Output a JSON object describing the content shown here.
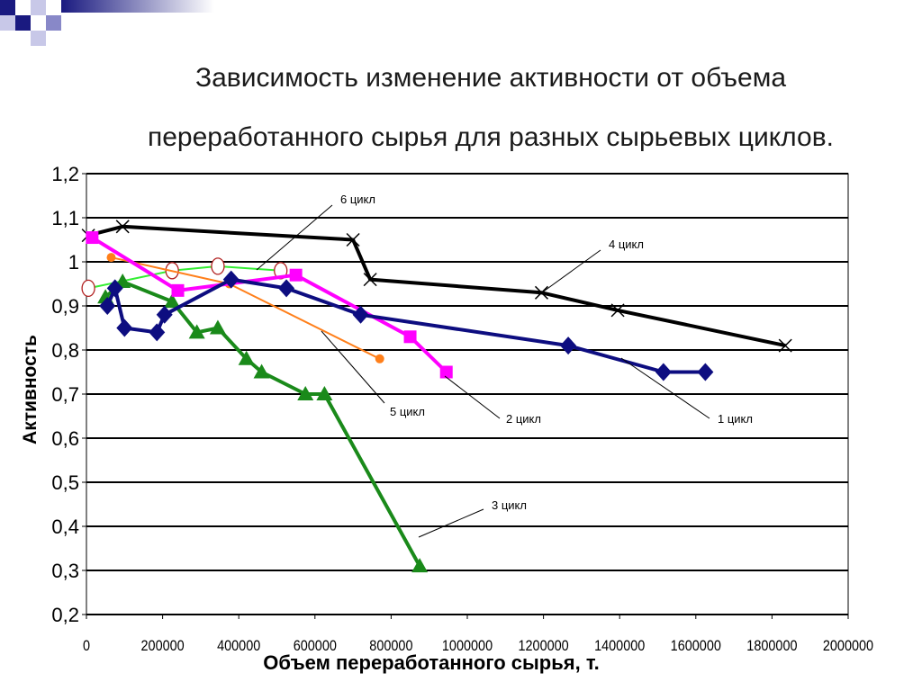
{
  "title_line1": "Зависимость изменение активности от объема",
  "title_line2": "переработанного сырья для разных сырьевых циклов.",
  "chart_data": {
    "type": "line",
    "title": "Зависимость изменение активности от объема переработанного сырья для разных сырьевых циклов.",
    "xlabel": "Объем переработанного сырья, т.",
    "ylabel": "Активность",
    "xlim": [
      0,
      2000000
    ],
    "ylim": [
      0.2,
      1.2
    ],
    "x_ticks": [
      0,
      200000,
      400000,
      600000,
      800000,
      1000000,
      1200000,
      1400000,
      1600000,
      1800000,
      2000000
    ],
    "x_tick_labels": [
      "0",
      "200000",
      "400000",
      "600000",
      "800000",
      "1000000",
      "1200000",
      "1400000",
      "1600000",
      "1800000",
      "2000000"
    ],
    "y_ticks": [
      0.2,
      0.3,
      0.4,
      0.5,
      0.6,
      0.7,
      0.8,
      0.9,
      1.0,
      1.1,
      1.2
    ],
    "y_tick_labels": [
      "0,2",
      "0,3",
      "0,4",
      "0,5",
      "0,6",
      "0,7",
      "0,8",
      "0,9",
      "1",
      "1,1",
      "1,2"
    ],
    "grid": "horizontal",
    "series": [
      {
        "name": "1 цикл",
        "color": "#0d0d80",
        "marker": "diamond",
        "x": [
          55000,
          75000,
          100000,
          185000,
          205000,
          380000,
          525000,
          720000,
          1265000,
          1515000,
          1625000
        ],
        "y": [
          0.9,
          0.94,
          0.85,
          0.84,
          0.88,
          0.96,
          0.94,
          0.88,
          0.81,
          0.75,
          0.75
        ]
      },
      {
        "name": "2 цикл",
        "color": "#ff00ff",
        "marker": "square",
        "x": [
          15000,
          240000,
          550000,
          850000,
          945000
        ],
        "y": [
          1.055,
          0.935,
          0.97,
          0.83,
          0.75
        ]
      },
      {
        "name": "3 цикл",
        "color": "#1a8a1a",
        "marker": "triangle",
        "x": [
          50000,
          95000,
          225000,
          290000,
          345000,
          420000,
          460000,
          575000,
          625000,
          875000
        ],
        "y": [
          0.92,
          0.955,
          0.91,
          0.84,
          0.85,
          0.78,
          0.75,
          0.7,
          0.7,
          0.31
        ]
      },
      {
        "name": "4 цикл",
        "color": "#000000",
        "marker": "x",
        "x": [
          5000,
          95000,
          700000,
          745000,
          1195000,
          1395000,
          1835000
        ],
        "y": [
          1.06,
          1.08,
          1.05,
          0.96,
          0.93,
          0.89,
          0.81
        ]
      },
      {
        "name": "5 цикл",
        "color": "#ff7f1a",
        "marker": "circle-filled",
        "x": [
          65000,
          375000,
          770000
        ],
        "y": [
          1.01,
          0.95,
          0.78
        ]
      },
      {
        "name": "6 цикл",
        "color": "#33ee33",
        "marker": "circle-open",
        "x": [
          5000,
          225000,
          345000,
          510000
        ],
        "y": [
          0.94,
          0.98,
          0.99,
          0.98
        ]
      }
    ],
    "annotations": [
      "6 цикл",
      "4 цикл",
      "5 цикл",
      "2 цикл",
      "1 цикл",
      "3 цикл"
    ]
  }
}
